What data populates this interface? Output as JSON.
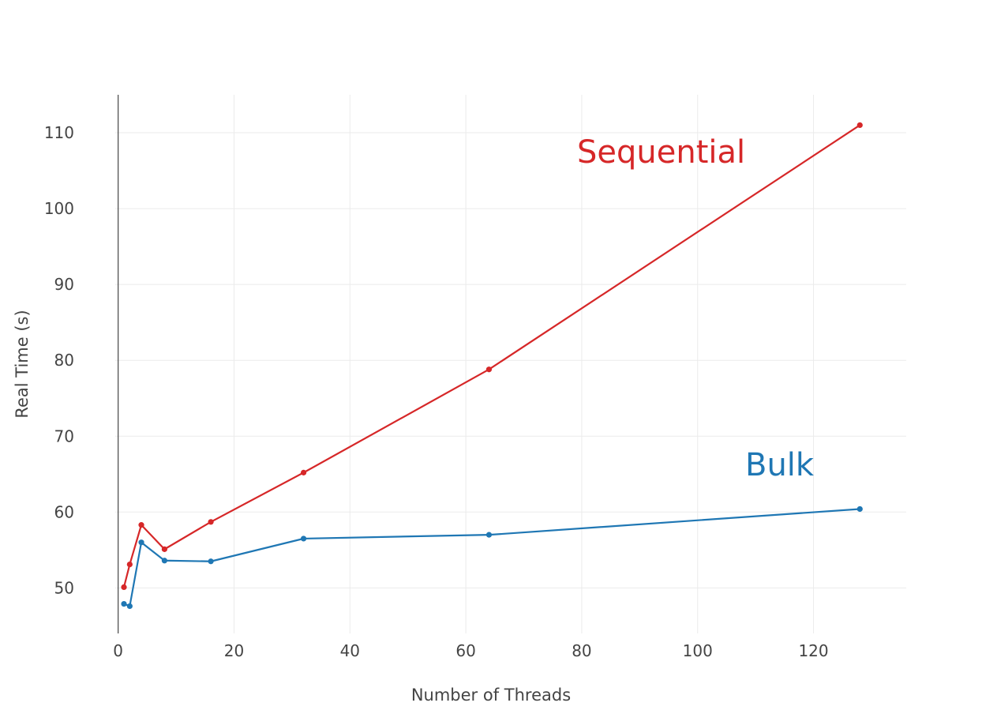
{
  "chart_data": {
    "type": "line",
    "xlabel": "Number of Threads",
    "ylabel": "Real Time (s)",
    "xlim": [
      -0.5,
      136
    ],
    "ylim": [
      44,
      115
    ],
    "x_ticks": [
      0,
      20,
      40,
      60,
      80,
      100,
      120
    ],
    "y_ticks": [
      50,
      60,
      70,
      80,
      90,
      100,
      110
    ],
    "grid": true,
    "legend": "none",
    "x": [
      1,
      2,
      4,
      8,
      16,
      32,
      64,
      128
    ],
    "series": [
      {
        "name": "Sequential",
        "color": "#d62728",
        "values": [
          50.1,
          53.1,
          58.3,
          55.1,
          58.7,
          65.2,
          78.8,
          111.0
        ]
      },
      {
        "name": "Bulk",
        "color": "#1f77b4",
        "values": [
          47.9,
          47.6,
          56.0,
          53.6,
          53.5,
          56.5,
          57.0,
          60.4
        ]
      }
    ]
  }
}
